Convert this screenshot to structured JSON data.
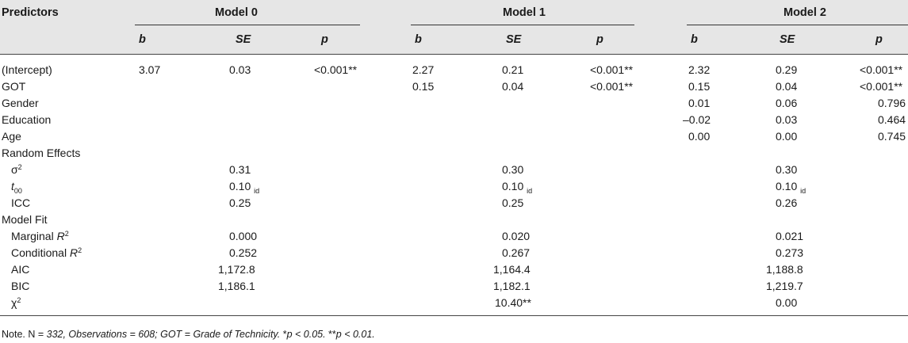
{
  "header": {
    "predictors": "Predictors",
    "models": [
      "Model 0",
      "Model 1",
      "Model 2"
    ],
    "cols": [
      "b",
      "SE",
      "p"
    ]
  },
  "rows": [
    {
      "label": "(Intercept)",
      "m0": [
        "3.07",
        "0.03",
        "<0.001**"
      ],
      "m1": [
        "2.27",
        "0.21",
        "<0.001**"
      ],
      "m2": [
        "2.32",
        "0.29",
        "<0.001**"
      ]
    },
    {
      "label": "GOT",
      "m0": [
        "",
        "",
        ""
      ],
      "m1": [
        "0.15",
        "0.04",
        "<0.001**"
      ],
      "m2": [
        "0.15",
        "0.04",
        "<0.001**"
      ]
    },
    {
      "label": "Gender",
      "m0": [
        "",
        "",
        ""
      ],
      "m1": [
        "",
        "",
        ""
      ],
      "m2": [
        "0.01",
        "0.06",
        "0.796"
      ]
    },
    {
      "label": "Education",
      "m0": [
        "",
        "",
        ""
      ],
      "m1": [
        "",
        "",
        ""
      ],
      "m2": [
        "–0.02",
        "0.03",
        "0.464"
      ]
    },
    {
      "label": "Age",
      "m0": [
        "",
        "",
        ""
      ],
      "m1": [
        "",
        "",
        ""
      ],
      "m2": [
        "0.00",
        "0.00",
        "0.745"
      ]
    }
  ],
  "random_effects": {
    "label": "Random Effects",
    "sigma_label": "σ",
    "sigma_sup": "2",
    "sigma": [
      "0.31",
      "0.30",
      "0.30"
    ],
    "tau_label": "t",
    "tau_sub": "00",
    "tau": [
      "0.10",
      "0.10",
      "0.10"
    ],
    "tau_suffix": "id",
    "icc_label": "ICC",
    "icc": [
      "0.25",
      "0.25",
      "0.26"
    ]
  },
  "model_fit": {
    "label": "Model Fit",
    "marginal_label": "Marginal ",
    "marginal_R": "R",
    "marginal_sup": "2",
    "marginal": [
      "0.000",
      "0.020",
      "0.021"
    ],
    "conditional_label": "Conditional ",
    "conditional_R": "R",
    "conditional_sup": "2",
    "conditional": [
      "0.252",
      "0.267",
      "0.273"
    ],
    "aic_label": "AIC",
    "aic": [
      "1,172.8",
      "1,164.4",
      "1,188.8"
    ],
    "bic_label": "BIC",
    "bic": [
      "1,186.1",
      "1,182.1",
      "1,219.7"
    ],
    "chi_label": "χ",
    "chi_sup": "2",
    "chi": [
      "",
      "10.40**",
      "0.00"
    ]
  },
  "note": {
    "prefix": "Note. N = ",
    "italic": "332, Observations = 608; GOT = Grade of Technicity.",
    "sig1_star": " *",
    "sig1": "p < 0.05.",
    "sig2_star": " **",
    "sig2": "p < 0.01."
  }
}
